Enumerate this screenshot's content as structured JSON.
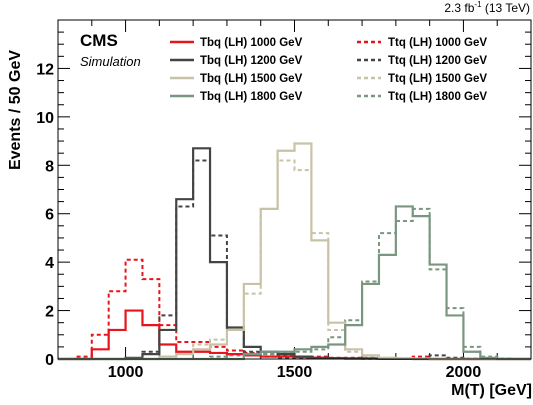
{
  "chart_data": {
    "type": "line",
    "title": "",
    "lumi_label": "2.3 fb⁻¹ (13 TeV)",
    "experiment_label": "CMS",
    "sub_label": "Simulation",
    "xlabel": "M(T) [GeV]",
    "ylabel": "Events / 50 GeV",
    "xlim": [
      800,
      2200
    ],
    "ylim": [
      0,
      14
    ],
    "bin_width": 50,
    "x_ticks": [
      1000,
      1500,
      2000
    ],
    "y_ticks": [
      0,
      2,
      4,
      6,
      8,
      10,
      12
    ],
    "grid": false,
    "legend_placement": "top",
    "bin_edges": [
      800,
      850,
      900,
      950,
      1000,
      1050,
      1100,
      1150,
      1200,
      1250,
      1300,
      1350,
      1400,
      1450,
      1500,
      1550,
      1600,
      1650,
      1700,
      1750,
      1800,
      1850,
      1900,
      1950,
      2000,
      2050,
      2100,
      2150,
      2200
    ],
    "series": [
      {
        "name": "Tbq (LH) 1000 GeV",
        "color": "#e8141b",
        "style": "solid",
        "values": [
          0,
          0,
          0.4,
          1.2,
          2.0,
          1.4,
          0.6,
          0.3,
          0.3,
          0.25,
          0.2,
          0.15,
          0.1,
          0.1,
          0.08,
          0.05,
          0.03,
          0.02,
          0.02,
          0.01,
          0.01,
          0.01,
          0,
          0,
          0,
          0,
          0,
          0
        ]
      },
      {
        "name": "Tbq (LH) 1200 GeV",
        "color": "#444444",
        "style": "solid",
        "values": [
          0,
          0,
          0,
          0,
          0.05,
          0.2,
          1.2,
          6.6,
          8.7,
          4.0,
          1.3,
          0.5,
          0.3,
          0.2,
          0.1,
          0.05,
          0.03,
          0.02,
          0.02,
          0.01,
          0.01,
          0,
          0,
          0,
          0,
          0,
          0,
          0
        ]
      },
      {
        "name": "Tbq (LH) 1500 GeV",
        "color": "#c8c2a6",
        "style": "solid",
        "values": [
          0,
          0,
          0,
          0,
          0,
          0,
          0.1,
          0.2,
          0.4,
          0.6,
          1.2,
          3.1,
          6.2,
          8.6,
          8.9,
          4.9,
          1.5,
          0.4,
          0.15,
          0.05,
          0.03,
          0.02,
          0,
          0,
          0,
          0,
          0,
          0
        ]
      },
      {
        "name": "Tbq (LH) 1800 GeV",
        "color": "#7a9680",
        "style": "solid",
        "values": [
          0,
          0,
          0,
          0,
          0,
          0,
          0,
          0,
          0,
          0,
          0,
          0.2,
          0.3,
          0.3,
          0.4,
          0.5,
          0.6,
          1.4,
          3.1,
          4.3,
          6.3,
          5.9,
          3.9,
          1.8,
          0.3,
          0.05,
          0,
          0
        ]
      },
      {
        "name": "Ttq (LH) 1000 GeV",
        "color": "#e8141b",
        "style": "dashed",
        "values": [
          0,
          0.1,
          1.0,
          2.8,
          4.1,
          3.3,
          1.4,
          0.7,
          0.7,
          0.5,
          0.35,
          0.25,
          0.2,
          0.15,
          0.1,
          0.1,
          0.05,
          0.05,
          0.03,
          0.02,
          0.02,
          0.1,
          0,
          0,
          0,
          0,
          0,
          0
        ]
      },
      {
        "name": "Ttq (LH) 1200 GeV",
        "color": "#444444",
        "style": "dashed",
        "values": [
          0,
          0,
          0,
          0,
          0,
          0.3,
          1.8,
          6.3,
          8.2,
          5.1,
          1.2,
          0.3,
          0.1,
          0.05,
          0.05,
          0.03,
          0.02,
          0.02,
          0.01,
          0.01,
          0.01,
          0.01,
          0.15,
          0.05,
          0.01,
          0,
          0,
          0
        ]
      },
      {
        "name": "Ttq (LH) 1500 GeV",
        "color": "#c8c2a6",
        "style": "dashed",
        "values": [
          0,
          0,
          0,
          0,
          0,
          0,
          0.1,
          0.3,
          0.6,
          0.8,
          1.2,
          2.7,
          6.2,
          8.2,
          7.8,
          5.2,
          1.2,
          0.3,
          0.1,
          0.05,
          0.03,
          0.02,
          0,
          0,
          0,
          0,
          0,
          0
        ]
      },
      {
        "name": "Ttq (LH) 1800 GeV",
        "color": "#7a9680",
        "style": "dashed",
        "values": [
          0,
          0,
          0,
          0,
          0,
          0,
          0,
          0,
          0,
          0.1,
          0.15,
          0.2,
          0.2,
          0.25,
          0.3,
          0.4,
          0.9,
          1.6,
          3.2,
          5.2,
          5.7,
          6.2,
          3.7,
          2.1,
          0.5,
          0.1,
          0.02,
          0
        ]
      }
    ]
  }
}
